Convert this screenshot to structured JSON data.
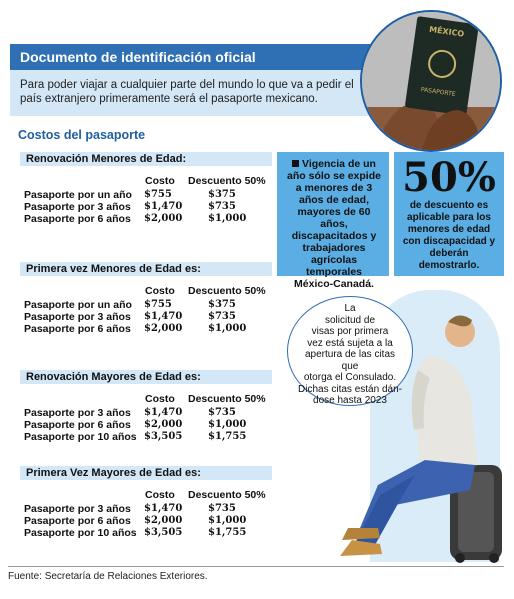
{
  "header": {
    "title": "Documento de identificación oficial"
  },
  "intro": {
    "text": "Para poder viajar a cualquier parte del mundo lo que va a pedir el país extranjero primeramente será el pasaporte mexicano."
  },
  "passport": {
    "country": "MÉXICO",
    "label": "PASAPORTE"
  },
  "costs_title": "Costos del pasaporte",
  "columns": {
    "cost": "Costo",
    "discount": "Descuento 50%"
  },
  "sections": [
    {
      "title": "Renovación Menores de Edad:",
      "rows": [
        {
          "label": "Pasaporte por un año",
          "cost": "$755",
          "discount": "$375"
        },
        {
          "label": "Pasaporte por 3 años",
          "cost": "$1,470",
          "discount": "$735"
        },
        {
          "label": "Pasaporte por 6 años",
          "cost": "$2,000",
          "discount": "$1,000"
        }
      ]
    },
    {
      "title": "Primera vez Menores de Edad es:",
      "rows": [
        {
          "label": "Pasaporte por un año",
          "cost": "$755",
          "discount": "$375"
        },
        {
          "label": "Pasaporte por 3 años",
          "cost": "$1,470",
          "discount": "$735"
        },
        {
          "label": "Pasaporte por 6 años",
          "cost": "$2,000",
          "discount": "$1,000"
        }
      ]
    },
    {
      "title": "Renovación Mayores de Edad es:",
      "rows": [
        {
          "label": "Pasaporte por 3 años",
          "cost": "$1,470",
          "discount": "$735"
        },
        {
          "label": "Pasaporte por 6 años",
          "cost": "$2,000",
          "discount": "$1,000"
        },
        {
          "label": "Pasaporte por 10 años",
          "cost": "$3,505",
          "discount": "$1,755"
        }
      ]
    },
    {
      "title": "Primera Vez Mayores  de Edad es:",
      "rows": [
        {
          "label": "Pasaporte por 3 años",
          "cost": "$1,470",
          "discount": "$735"
        },
        {
          "label": "Pasaporte por 6  años",
          "cost": "$2,000",
          "discount": "$1,000"
        },
        {
          "label": "Pasaporte por 10 años",
          "cost": "$3,505",
          "discount": "$1,755"
        }
      ]
    }
  ],
  "info1": {
    "text": "Vigencia de un año sólo se expide a menores de 3 años de edad, mayores de 60 años, discapacitados y trabajadores agrícolas temporales México-Canadá."
  },
  "info2": {
    "big": "50%",
    "text": "de descuento es aplicable para los menores de edad con discapacidad y deberán demostrarlo."
  },
  "bubble": {
    "lines": [
      "La",
      "solicitud de",
      "visas por primera",
      "vez está sujeta a la",
      "apertura de las citas que",
      "otorga el Consulado.",
      "Dichas citas están dán-",
      "dose hasta 2023"
    ]
  },
  "source": "Fuente: Secretaría de Relaciones Exteriores."
}
